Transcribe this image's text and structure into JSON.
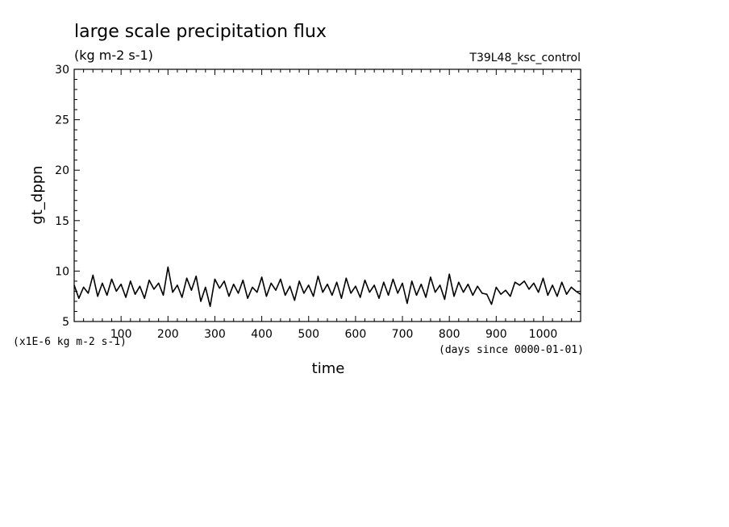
{
  "chart_data": {
    "type": "line",
    "title": "large scale precipitation flux",
    "subtitle": "(kg m-2 s-1)",
    "run_label": "T39L48_ksc_control",
    "xlabel": "time",
    "ylabel": "gt_dppn",
    "y_scale_note": "(x1E-6 kg m-2 s-1)",
    "x_units_note": "(days since 0000-01-01)",
    "xlim": [
      0,
      1080
    ],
    "ylim": [
      5,
      30
    ],
    "x_ticks": [
      "100",
      "200",
      "300",
      "400",
      "500",
      "600",
      "700",
      "800",
      "900",
      "1000"
    ],
    "y_ticks": [
      "5",
      "10",
      "15",
      "20",
      "25",
      "30"
    ],
    "grid": false,
    "series": [
      {
        "x": [
          0,
          10,
          20,
          30,
          40,
          50,
          60,
          70,
          80,
          90,
          100,
          110,
          120,
          130,
          140,
          150,
          160,
          170,
          180,
          190,
          200,
          210,
          220,
          230,
          240,
          250,
          260,
          270,
          280,
          290,
          300,
          310,
          320,
          330,
          340,
          350,
          360,
          370,
          380,
          390,
          400,
          410,
          420,
          430,
          440,
          450,
          460,
          470,
          480,
          490,
          500,
          510,
          520,
          530,
          540,
          550,
          560,
          570,
          580,
          590,
          600,
          610,
          620,
          630,
          640,
          650,
          660,
          670,
          680,
          690,
          700,
          710,
          720,
          730,
          740,
          750,
          760,
          770,
          780,
          790,
          800,
          810,
          820,
          830,
          840,
          850,
          860,
          870,
          880,
          890,
          900,
          910,
          920,
          930,
          940,
          950,
          960,
          970,
          980,
          990,
          1000,
          1010,
          1020,
          1030,
          1040,
          1050,
          1060,
          1070,
          1080
        ],
        "values": [
          8.6,
          7.3,
          8.4,
          7.8,
          9.6,
          7.5,
          8.8,
          7.6,
          9.2,
          8.0,
          8.7,
          7.4,
          9.0,
          7.7,
          8.5,
          7.3,
          9.1,
          8.2,
          8.8,
          7.6,
          10.4,
          7.9,
          8.6,
          7.4,
          9.3,
          8.1,
          9.5,
          7.0,
          8.4,
          6.5,
          9.2,
          8.3,
          9.0,
          7.5,
          8.7,
          7.8,
          9.1,
          7.3,
          8.4,
          7.9,
          9.4,
          7.5,
          8.8,
          8.1,
          9.2,
          7.6,
          8.5,
          7.1,
          9.0,
          7.8,
          8.6,
          7.5,
          9.5,
          7.9,
          8.7,
          7.6,
          8.9,
          7.3,
          9.3,
          7.8,
          8.5,
          7.4,
          9.1,
          7.9,
          8.6,
          7.3,
          8.9,
          7.6,
          9.2,
          7.8,
          8.8,
          6.8,
          9.0,
          7.6,
          8.7,
          7.4,
          9.4,
          7.9,
          8.6,
          7.2,
          9.7,
          7.5,
          8.9,
          7.9,
          8.7,
          7.6,
          8.5,
          7.8,
          7.7,
          6.7,
          8.4,
          7.7,
          8.1,
          7.5,
          8.9,
          8.6,
          9.0,
          8.2,
          8.8,
          7.9,
          9.3,
          7.6,
          8.6,
          7.5,
          8.9,
          7.7,
          8.4,
          8.0,
          7.7
        ]
      }
    ]
  }
}
